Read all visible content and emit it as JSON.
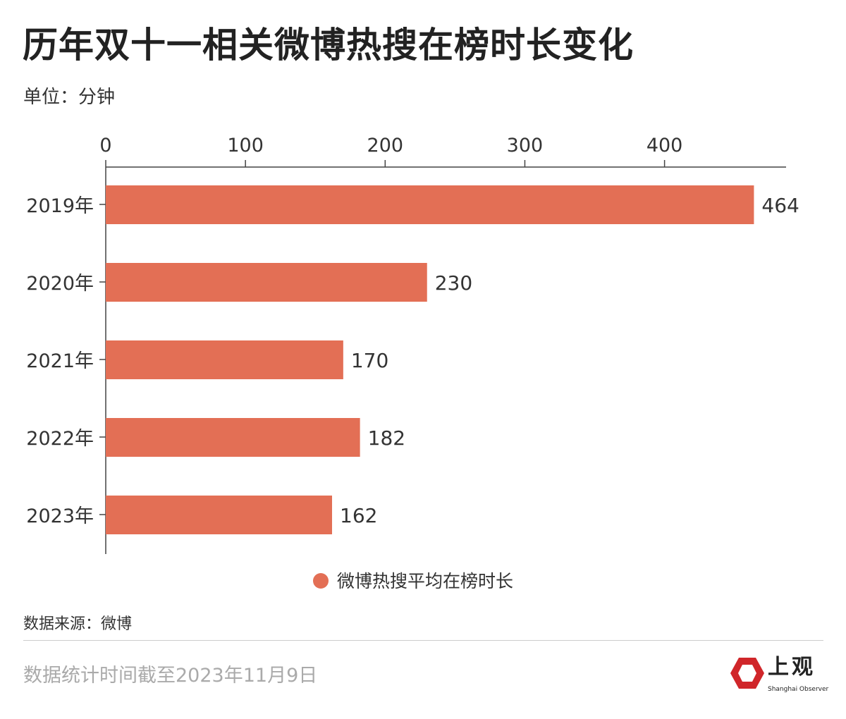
{
  "title": "历年双十一相关微博热搜在榜时长变化",
  "unit": "单位：分钟",
  "source": "数据来源：微博",
  "footnote": "数据统计时间截至2023年11月9日",
  "logo": {
    "cn": "上观",
    "en": "Shanghai Observer"
  },
  "chart_data": {
    "type": "bar",
    "orientation": "horizontal",
    "categories": [
      "2019年",
      "2020年",
      "2021年",
      "2022年",
      "2023年"
    ],
    "series": [
      {
        "name": "微博热搜平均在榜时长",
        "values": [
          464,
          230,
          170,
          182,
          162
        ],
        "color": "#e36f55"
      }
    ],
    "xlim": [
      0,
      487
    ],
    "xticks": [
      0,
      100,
      200,
      300,
      400
    ],
    "xaxis_position": "top",
    "legend": "bottom",
    "grid": false,
    "data_labels": true
  }
}
